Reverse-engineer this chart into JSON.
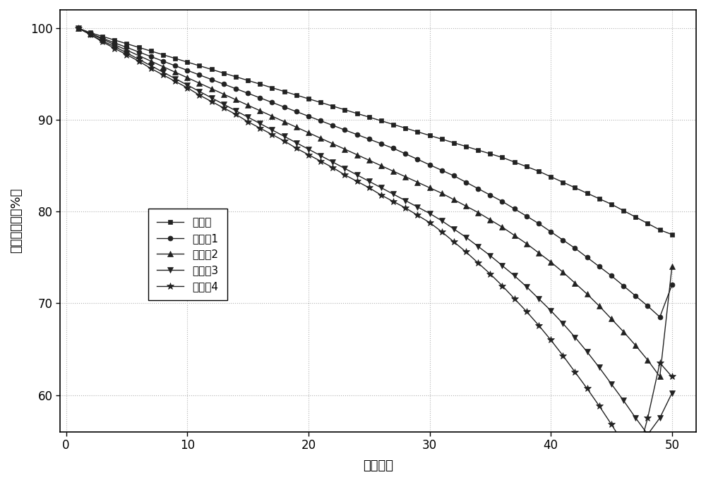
{
  "xlabel": "循环次数",
  "ylabel": "容量保持率（%）",
  "xlim": [
    -0.5,
    52
  ],
  "ylim": [
    56,
    102
  ],
  "xticks": [
    0,
    10,
    20,
    30,
    40,
    50
  ],
  "yticks": [
    60,
    70,
    80,
    90,
    100
  ],
  "line_color": "#222222",
  "background_color": "#ffffff",
  "series": [
    {
      "label": "实施例",
      "marker": "s",
      "x": [
        1,
        2,
        3,
        4,
        5,
        6,
        7,
        8,
        9,
        10,
        11,
        12,
        13,
        14,
        15,
        16,
        17,
        18,
        19,
        20,
        21,
        22,
        23,
        24,
        25,
        26,
        27,
        28,
        29,
        30,
        31,
        32,
        33,
        34,
        35,
        36,
        37,
        38,
        39,
        40,
        41,
        42,
        43,
        44,
        45,
        46,
        47,
        48,
        49,
        50
      ],
      "y": [
        100.0,
        99.5,
        99.1,
        98.7,
        98.3,
        97.9,
        97.5,
        97.1,
        96.7,
        96.3,
        95.9,
        95.5,
        95.1,
        94.7,
        94.3,
        93.9,
        93.5,
        93.1,
        92.7,
        92.3,
        91.9,
        91.5,
        91.1,
        90.7,
        90.3,
        89.9,
        89.5,
        89.1,
        88.7,
        88.3,
        87.9,
        87.5,
        87.1,
        86.7,
        86.3,
        85.9,
        85.4,
        84.9,
        84.4,
        83.8,
        83.2,
        82.6,
        82.0,
        81.4,
        80.8,
        80.1,
        79.4,
        78.7,
        78.0,
        77.5
      ]
    },
    {
      "label": "对比例1",
      "marker": "o",
      "x": [
        1,
        2,
        3,
        4,
        5,
        6,
        7,
        8,
        9,
        10,
        11,
        12,
        13,
        14,
        15,
        16,
        17,
        18,
        19,
        20,
        21,
        22,
        23,
        24,
        25,
        26,
        27,
        28,
        29,
        30,
        31,
        32,
        33,
        34,
        35,
        36,
        37,
        38,
        39,
        40,
        41,
        42,
        43,
        44,
        45,
        46,
        47,
        48,
        49,
        50
      ],
      "y": [
        100.0,
        99.4,
        98.9,
        98.4,
        97.9,
        97.4,
        96.9,
        96.4,
        95.9,
        95.4,
        94.9,
        94.4,
        93.9,
        93.4,
        92.9,
        92.4,
        91.9,
        91.4,
        90.9,
        90.4,
        89.9,
        89.4,
        88.9,
        88.4,
        87.9,
        87.4,
        86.9,
        86.3,
        85.7,
        85.1,
        84.5,
        83.9,
        83.2,
        82.5,
        81.8,
        81.1,
        80.3,
        79.5,
        78.7,
        77.8,
        76.9,
        76.0,
        75.0,
        74.0,
        73.0,
        71.9,
        70.8,
        69.7,
        68.5,
        72.0
      ]
    },
    {
      "label": "对比例2",
      "marker": "^",
      "x": [
        1,
        2,
        3,
        4,
        5,
        6,
        7,
        8,
        9,
        10,
        11,
        12,
        13,
        14,
        15,
        16,
        17,
        18,
        19,
        20,
        21,
        22,
        23,
        24,
        25,
        26,
        27,
        28,
        29,
        30,
        31,
        32,
        33,
        34,
        35,
        36,
        37,
        38,
        39,
        40,
        41,
        42,
        43,
        44,
        45,
        46,
        47,
        48,
        49,
        50
      ],
      "y": [
        100.0,
        99.4,
        98.8,
        98.2,
        97.6,
        97.0,
        96.4,
        95.8,
        95.2,
        94.6,
        94.0,
        93.4,
        92.8,
        92.2,
        91.6,
        91.0,
        90.4,
        89.8,
        89.2,
        88.6,
        88.0,
        87.4,
        86.8,
        86.2,
        85.6,
        85.0,
        84.4,
        83.8,
        83.2,
        82.6,
        82.0,
        81.3,
        80.6,
        79.9,
        79.1,
        78.3,
        77.4,
        76.5,
        75.5,
        74.5,
        73.4,
        72.2,
        71.0,
        69.7,
        68.3,
        66.9,
        65.4,
        63.8,
        62.0,
        74.0
      ]
    },
    {
      "label": "对比例3",
      "marker": "v",
      "x": [
        1,
        2,
        3,
        4,
        5,
        6,
        7,
        8,
        9,
        10,
        11,
        12,
        13,
        14,
        15,
        16,
        17,
        18,
        19,
        20,
        21,
        22,
        23,
        24,
        25,
        26,
        27,
        28,
        29,
        30,
        31,
        32,
        33,
        34,
        35,
        36,
        37,
        38,
        39,
        40,
        41,
        42,
        43,
        44,
        45,
        46,
        47,
        48,
        49,
        50
      ],
      "y": [
        100.0,
        99.3,
        98.6,
        98.0,
        97.3,
        96.6,
        95.9,
        95.2,
        94.5,
        93.8,
        93.1,
        92.4,
        91.7,
        91.0,
        90.3,
        89.6,
        88.9,
        88.2,
        87.5,
        86.8,
        86.1,
        85.4,
        84.7,
        84.0,
        83.3,
        82.6,
        81.9,
        81.2,
        80.5,
        79.8,
        79.0,
        78.1,
        77.2,
        76.2,
        75.2,
        74.1,
        73.0,
        71.8,
        70.5,
        69.2,
        67.8,
        66.3,
        64.7,
        63.0,
        61.2,
        59.4,
        57.5,
        55.7,
        57.5,
        60.2
      ]
    },
    {
      "label": "对比例4",
      "marker": "*",
      "x": [
        1,
        2,
        3,
        4,
        5,
        6,
        7,
        8,
        9,
        10,
        11,
        12,
        13,
        14,
        15,
        16,
        17,
        18,
        19,
        20,
        21,
        22,
        23,
        24,
        25,
        26,
        27,
        28,
        29,
        30,
        31,
        32,
        33,
        34,
        35,
        36,
        37,
        38,
        39,
        40,
        41,
        42,
        43,
        44,
        45,
        46,
        47,
        48,
        49,
        50
      ],
      "y": [
        100.0,
        99.3,
        98.5,
        97.8,
        97.1,
        96.4,
        95.6,
        94.9,
        94.2,
        93.5,
        92.7,
        92.0,
        91.3,
        90.6,
        89.8,
        89.1,
        88.4,
        87.7,
        86.9,
        86.2,
        85.5,
        84.8,
        84.0,
        83.3,
        82.6,
        81.8,
        81.1,
        80.4,
        79.6,
        78.8,
        77.8,
        76.7,
        75.6,
        74.4,
        73.2,
        71.9,
        70.5,
        69.1,
        67.6,
        66.0,
        64.3,
        62.5,
        60.7,
        58.8,
        56.8,
        54.7,
        52.6,
        57.5,
        63.5,
        62.0
      ]
    }
  ]
}
